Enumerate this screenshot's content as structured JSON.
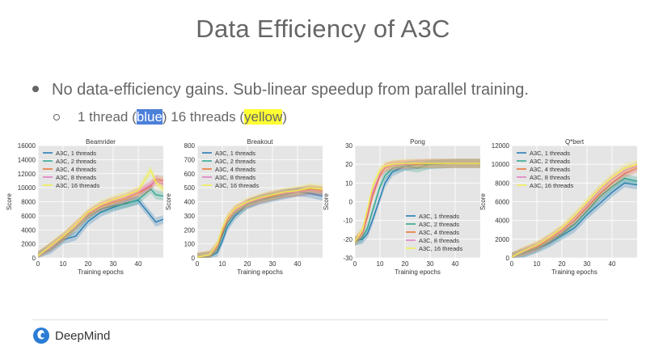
{
  "slide": {
    "title": "Data Efficiency of A3C",
    "bullet_main": "No data-efficiency gains. Sub-linear speedup from parallel training.",
    "bullet_sub_1": "1 thread (",
    "bullet_sub_blue": "blue",
    "bullet_sub_2": ") 16 threads (",
    "bullet_sub_yellow": "yellow",
    "bullet_sub_3": ")",
    "logo_text": "DeepMind"
  },
  "colors": {
    "t1": "#1f77b4",
    "t2": "#2ca58d",
    "t4": "#e8702a",
    "t8": "#e377c2",
    "t16": "#f0f04a",
    "plot_bg": "#e5e5e5",
    "highlight_blue": "#4c7fd9",
    "highlight_yellow": "#ffff33"
  },
  "chart_data": [
    {
      "type": "line",
      "title": "Beamrider",
      "xlabel": "Training epochs",
      "ylabel": "Score",
      "xlim": [
        0,
        50
      ],
      "ylim": [
        0,
        16000
      ],
      "xticks": [
        0,
        10,
        20,
        30,
        40
      ],
      "yticks": [
        0,
        2000,
        4000,
        6000,
        8000,
        10000,
        12000,
        14000,
        16000
      ],
      "legend": "top-left",
      "x": [
        0,
        5,
        10,
        15,
        20,
        25,
        30,
        35,
        40,
        45,
        47,
        50
      ],
      "series": [
        {
          "name": "A3C, 1 threads",
          "values": [
            300,
            1200,
            2600,
            3100,
            5200,
            6500,
            7200,
            7800,
            8200,
            6000,
            5100,
            5500
          ]
        },
        {
          "name": "A3C, 2 threads",
          "values": [
            300,
            1500,
            2800,
            4200,
            6000,
            7000,
            7400,
            7700,
            8300,
            9800,
            9000,
            8800
          ]
        },
        {
          "name": "A3C, 4 threads",
          "values": [
            300,
            1600,
            2900,
            4600,
            6200,
            7300,
            7900,
            8400,
            9200,
            10200,
            11200,
            11000
          ]
        },
        {
          "name": "A3C, 8 threads",
          "values": [
            300,
            1500,
            3000,
            4500,
            6300,
            7400,
            8100,
            8600,
            9400,
            10400,
            11000,
            10500
          ]
        },
        {
          "name": "A3C, 16 threads",
          "values": [
            300,
            1700,
            3100,
            4700,
            6500,
            7600,
            8300,
            8900,
            9600,
            12500,
            10800,
            9800
          ]
        }
      ]
    },
    {
      "type": "line",
      "title": "Breakout",
      "xlabel": "Training epochs",
      "ylabel": "Score",
      "xlim": [
        0,
        50
      ],
      "ylim": [
        0,
        800
      ],
      "xticks": [
        0,
        10,
        20,
        30,
        40
      ],
      "yticks": [
        0,
        100,
        200,
        300,
        400,
        500,
        600,
        700,
        800
      ],
      "legend": "top-left",
      "x": [
        0,
        5,
        8,
        10,
        12,
        15,
        20,
        25,
        30,
        35,
        40,
        45,
        50
      ],
      "series": [
        {
          "name": "A3C, 1 threads",
          "values": [
            5,
            10,
            40,
            120,
            220,
            300,
            380,
            410,
            430,
            450,
            470,
            460,
            440
          ]
        },
        {
          "name": "A3C, 2 threads",
          "values": [
            5,
            15,
            60,
            160,
            250,
            320,
            380,
            420,
            440,
            460,
            470,
            480,
            470
          ]
        },
        {
          "name": "A3C, 4 threads",
          "values": [
            5,
            20,
            80,
            180,
            270,
            340,
            390,
            420,
            440,
            460,
            470,
            490,
            480
          ]
        },
        {
          "name": "A3C, 8 threads",
          "values": [
            5,
            20,
            90,
            200,
            280,
            340,
            390,
            420,
            450,
            460,
            470,
            480,
            470
          ]
        },
        {
          "name": "A3C, 16 threads",
          "values": [
            5,
            25,
            100,
            210,
            290,
            350,
            400,
            430,
            450,
            470,
            480,
            500,
            490
          ]
        }
      ]
    },
    {
      "type": "line",
      "title": "Pong",
      "xlabel": "Training epochs",
      "ylabel": "Score",
      "xlim": [
        0,
        50
      ],
      "ylim": [
        -30,
        30
      ],
      "xticks": [
        0,
        10,
        20,
        30,
        40
      ],
      "yticks": [
        -30,
        -20,
        -10,
        0,
        10,
        20,
        30
      ],
      "legend": "bottom-right",
      "x": [
        0,
        3,
        5,
        7,
        10,
        12,
        15,
        20,
        25,
        30,
        40,
        50
      ],
      "series": [
        {
          "name": "A3C, 1 threads",
          "values": [
            -21,
            -20,
            -17,
            -10,
            2,
            10,
            16,
            19,
            20,
            20,
            20.5,
            20.5
          ]
        },
        {
          "name": "A3C, 2 threads",
          "values": [
            -21,
            -19,
            -14,
            -5,
            8,
            14,
            18,
            19,
            18,
            20,
            20.5,
            20.5
          ]
        },
        {
          "name": "A3C, 4 threads",
          "values": [
            -21,
            -17,
            -8,
            3,
            14,
            18,
            19.5,
            20,
            20,
            20.5,
            20.5,
            20.5
          ]
        },
        {
          "name": "A3C, 8 threads",
          "values": [
            -21,
            -16,
            -6,
            5,
            15,
            18.5,
            19.5,
            20,
            20.5,
            20.5,
            20.5,
            20.5
          ]
        },
        {
          "name": "A3C, 16 threads",
          "values": [
            -21,
            -15,
            -4,
            8,
            17,
            19,
            20,
            20.5,
            20.5,
            20.5,
            20.5,
            20.5
          ]
        }
      ]
    },
    {
      "type": "line",
      "title": "Q*bert",
      "xlabel": "Training epochs",
      "ylabel": "Score",
      "xlim": [
        0,
        50
      ],
      "ylim": [
        0,
        12000
      ],
      "xticks": [
        0,
        10,
        20,
        30,
        40
      ],
      "yticks": [
        0,
        2000,
        4000,
        6000,
        8000,
        10000,
        12000
      ],
      "legend": "top-left",
      "x": [
        0,
        5,
        10,
        15,
        20,
        25,
        30,
        35,
        40,
        45,
        50
      ],
      "series": [
        {
          "name": "A3C, 1 threads",
          "values": [
            100,
            500,
            1000,
            1600,
            2400,
            3200,
            4600,
            5800,
            7000,
            8000,
            7800
          ]
        },
        {
          "name": "A3C, 2 threads",
          "values": [
            100,
            600,
            1100,
            1800,
            2600,
            3600,
            5000,
            6500,
            7600,
            8500,
            8200
          ]
        },
        {
          "name": "A3C, 4 threads",
          "values": [
            100,
            700,
            1200,
            2000,
            2900,
            4000,
            5400,
            6800,
            8000,
            9000,
            9600
          ]
        },
        {
          "name": "A3C, 8 threads",
          "values": [
            100,
            700,
            1300,
            2100,
            3000,
            4300,
            5700,
            7200,
            8400,
            9300,
            9800
          ]
        },
        {
          "name": "A3C, 16 threads",
          "values": [
            100,
            800,
            1400,
            2200,
            3200,
            4500,
            6000,
            7400,
            8600,
            9600,
            10000
          ]
        }
      ]
    }
  ]
}
